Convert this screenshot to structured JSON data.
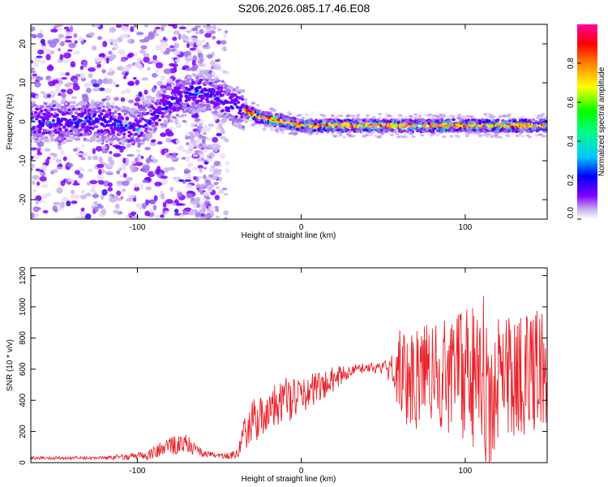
{
  "title": "S206.2026.085.17.46.E08",
  "chart_data": [
    {
      "type": "heatmap",
      "xlabel": "Height of straight line (km)",
      "ylabel": "Frequency (Hz)",
      "xlim": [
        -165,
        150
      ],
      "ylim": [
        -25,
        25
      ],
      "xticks": [
        -100,
        0,
        100
      ],
      "xtick_labels": [
        "-100",
        "0",
        "100"
      ],
      "yticks": [
        -20,
        -10,
        0,
        10,
        20
      ],
      "ytick_labels": [
        "-20",
        "-10",
        "0",
        "10",
        "20"
      ],
      "colorbar": {
        "label": "Normalized spectral amplitude",
        "range": [
          0,
          1
        ],
        "ticks": [
          0.0,
          0.2,
          0.4,
          0.6,
          0.8
        ],
        "tick_labels": [
          "0.0",
          "0.2",
          "0.4",
          "0.6",
          "0.8"
        ],
        "colormap": [
          "#ffffff",
          "#c8b0f0",
          "#8000ff",
          "#0000ff",
          "#00c8ff",
          "#00ff80",
          "#ffff00",
          "#ff8000",
          "#ff0000",
          "#ff00a0"
        ]
      },
      "ridge": {
        "description_points_x": [
          -165,
          -120,
          -100,
          -80,
          -60,
          -45,
          -35,
          -25,
          -10,
          0,
          10,
          40,
          60,
          100,
          150
        ],
        "description_points_y": [
          0,
          0,
          -2,
          5,
          8,
          5,
          3,
          1,
          0,
          -1,
          -1,
          -1,
          -1,
          -1,
          -1
        ]
      }
    },
    {
      "type": "line",
      "xlabel": "Height of straight line (km)",
      "ylabel": "SNR (10 * v/v)",
      "xlim": [
        -165,
        150
      ],
      "ylim": [
        0,
        1250
      ],
      "xticks": [
        -100,
        0,
        100
      ],
      "xtick_labels": [
        "-100",
        "0",
        "100"
      ],
      "yticks": [
        0,
        200,
        400,
        600,
        800,
        1000,
        1200
      ],
      "ytick_labels": [
        "0",
        "200",
        "400",
        "600",
        "800",
        "1000",
        "1200"
      ],
      "series": [
        {
          "name": "SNR",
          "color": "#e8232a",
          "envelope_x": [
            -165,
            -120,
            -95,
            -80,
            -70,
            -60,
            -50,
            -40,
            -35,
            -30,
            -20,
            -10,
            0,
            10,
            20,
            30,
            40,
            50,
            55,
            60,
            70,
            80,
            90,
            100,
            110,
            115,
            120,
            130,
            140,
            150
          ],
          "envelope_mean": [
            30,
            30,
            45,
            110,
            120,
            60,
            40,
            50,
            200,
            260,
            320,
            400,
            420,
            480,
            540,
            590,
            610,
            610,
            600,
            560,
            560,
            560,
            560,
            560,
            560,
            560,
            560,
            560,
            560,
            560
          ],
          "envelope_amp": [
            10,
            10,
            30,
            60,
            60,
            25,
            15,
            30,
            120,
            150,
            150,
            150,
            140,
            100,
            80,
            40,
            30,
            40,
            100,
            300,
            350,
            350,
            380,
            420,
            550,
            600,
            500,
            400,
            420,
            420
          ]
        }
      ]
    }
  ]
}
